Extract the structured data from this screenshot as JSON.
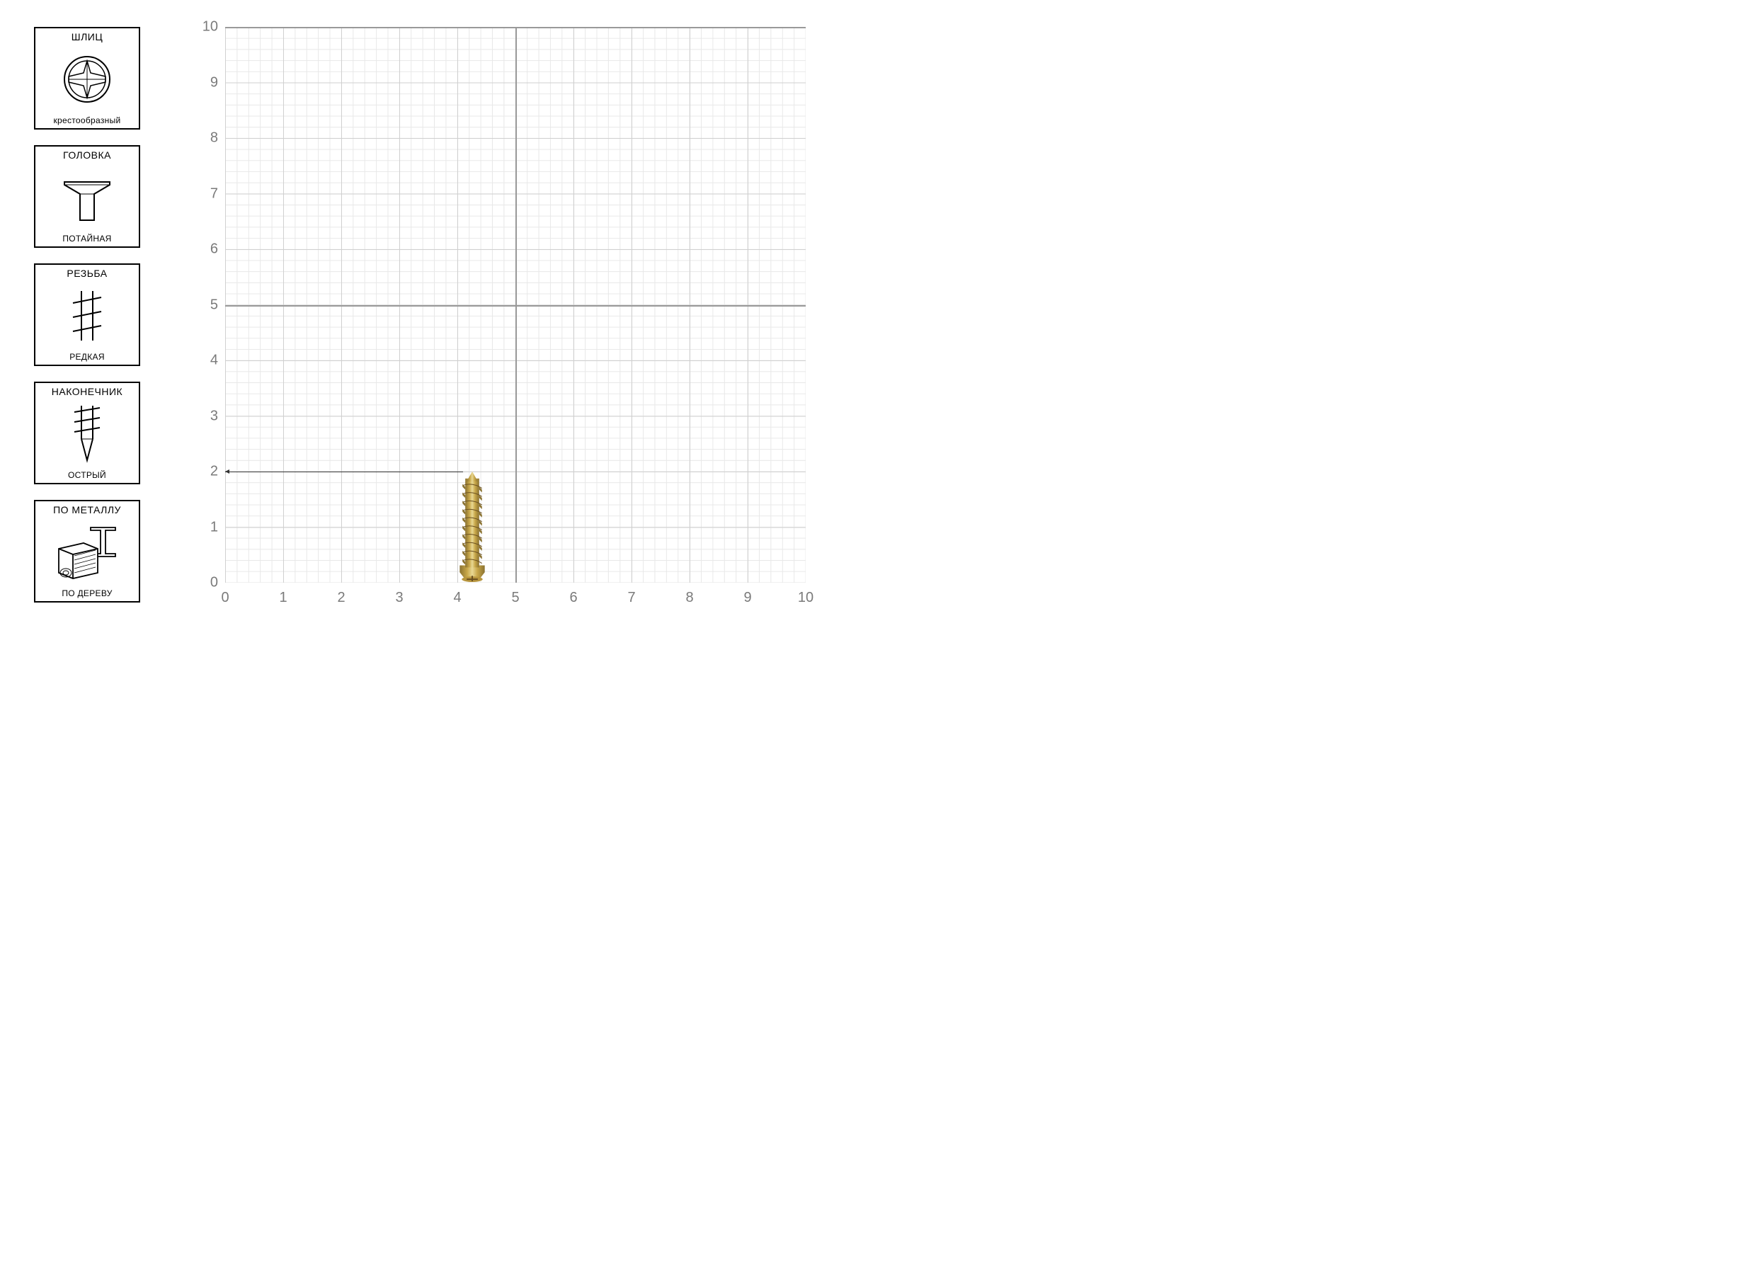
{
  "sidebar": {
    "boxes": [
      {
        "title": "ШЛИЦ",
        "label": "крестообразный",
        "icon": "phillips"
      },
      {
        "title": "ГОЛОВКА",
        "label": "ПОТАЙНАЯ",
        "icon": "countersunk"
      },
      {
        "title": "РЕЗЬБА",
        "label": "РЕДКАЯ",
        "icon": "thread-coarse"
      },
      {
        "title": "НАКОНЕЧНИК",
        "label": "ОСТРЫЙ",
        "icon": "tip-sharp"
      },
      {
        "title": "ПО МЕТАЛЛУ",
        "label": "ПО ДЕРЕВУ",
        "icon": "material"
      }
    ]
  },
  "chart": {
    "xlim": [
      0,
      10
    ],
    "ylim": [
      0,
      10
    ],
    "xtick_labels": [
      "0",
      "1",
      "2",
      "3",
      "4",
      "5",
      "6",
      "7",
      "8",
      "9",
      "10"
    ],
    "ytick_labels": [
      "0",
      "1",
      "2",
      "3",
      "4",
      "5",
      "6",
      "7",
      "8",
      "9",
      "10"
    ],
    "major_gridlines_y": [
      5,
      10
    ],
    "major_gridlines_x": [
      5
    ],
    "grid_minor_color": "#e8e8e8",
    "grid_unit_color": "#d0d0d0",
    "grid_major_color": "#999999",
    "label_color": "#7a7a7a",
    "label_fontsize": 20,
    "background_color": "#ffffff",
    "screw": {
      "x_position": 4.25,
      "height_cm": 2.0,
      "width_cm": 0.6,
      "body_color": "#c9a84a",
      "highlight_color": "#e8d894",
      "shadow_color": "#8a7230"
    },
    "dimension": {
      "y_value": 2.0,
      "from_x": 0,
      "to_x": 4.1
    }
  },
  "colors": {
    "border": "#000000",
    "text": "#000000"
  }
}
